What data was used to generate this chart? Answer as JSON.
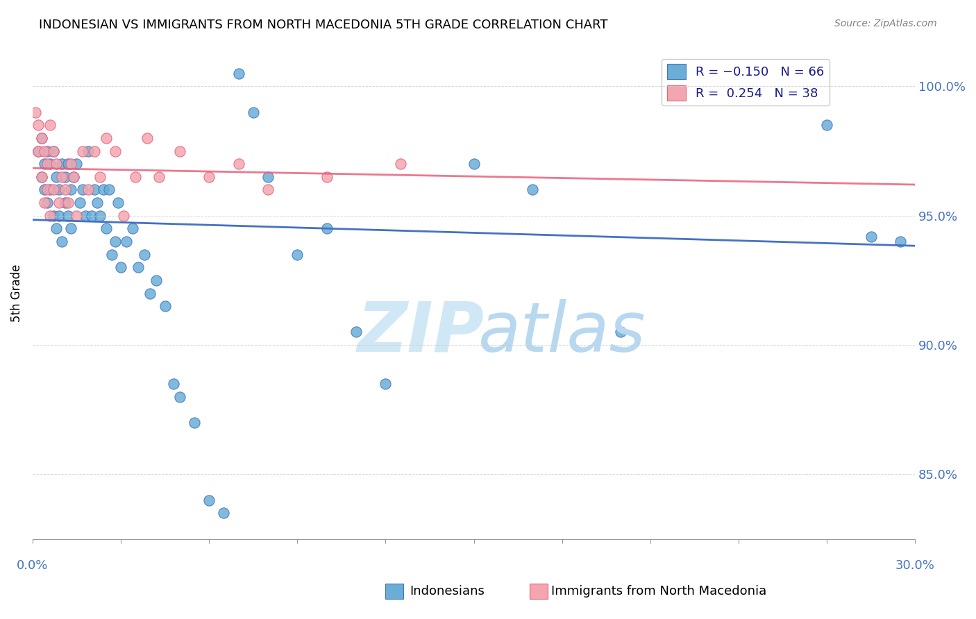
{
  "title": "INDONESIAN VS IMMIGRANTS FROM NORTH MACEDONIA 5TH GRADE CORRELATION CHART",
  "source": "Source: ZipAtlas.com",
  "ylabel": "5th Grade",
  "xlim": [
    0.0,
    30.0
  ],
  "ylim": [
    82.5,
    101.5
  ],
  "yticks": [
    85.0,
    90.0,
    95.0,
    100.0
  ],
  "ytick_labels": [
    "85.0%",
    "90.0%",
    "95.0%",
    "100.0%"
  ],
  "color_indonesian": "#6aaed6",
  "color_macedonian": "#f4a6b0",
  "color_line_indonesian": "#4472c4",
  "color_line_macedonian": "#e8607a",
  "watermark_color": "#d0e8f5",
  "indonesian_x": [
    0.2,
    0.3,
    0.3,
    0.4,
    0.4,
    0.5,
    0.5,
    0.6,
    0.6,
    0.7,
    0.7,
    0.8,
    0.8,
    0.9,
    0.9,
    1.0,
    1.0,
    1.1,
    1.1,
    1.2,
    1.2,
    1.3,
    1.3,
    1.4,
    1.5,
    1.6,
    1.7,
    1.8,
    1.9,
    2.0,
    2.1,
    2.2,
    2.3,
    2.4,
    2.5,
    2.6,
    2.7,
    2.8,
    2.9,
    3.0,
    3.2,
    3.4,
    3.6,
    3.8,
    4.0,
    4.2,
    4.5,
    4.8,
    5.0,
    5.5,
    6.0,
    6.5,
    7.0,
    7.5,
    8.0,
    9.0,
    10.0,
    11.0,
    12.0,
    15.0,
    17.0,
    20.0,
    24.0,
    27.0,
    28.5,
    29.5
  ],
  "indonesian_y": [
    97.5,
    98.0,
    96.5,
    97.0,
    96.0,
    97.5,
    95.5,
    97.0,
    96.0,
    97.5,
    95.0,
    96.5,
    94.5,
    96.0,
    95.0,
    97.0,
    94.0,
    96.5,
    95.5,
    97.0,
    95.0,
    96.0,
    94.5,
    96.5,
    97.0,
    95.5,
    96.0,
    95.0,
    97.5,
    95.0,
    96.0,
    95.5,
    95.0,
    96.0,
    94.5,
    96.0,
    93.5,
    94.0,
    95.5,
    93.0,
    94.0,
    94.5,
    93.0,
    93.5,
    92.0,
    92.5,
    91.5,
    88.5,
    88.0,
    87.0,
    84.0,
    83.5,
    100.5,
    99.0,
    96.5,
    93.5,
    94.5,
    90.5,
    88.5,
    97.0,
    96.0,
    90.5,
    100.5,
    98.5,
    94.2,
    94.0
  ],
  "macedonian_x": [
    0.1,
    0.2,
    0.2,
    0.3,
    0.3,
    0.4,
    0.4,
    0.5,
    0.5,
    0.6,
    0.6,
    0.7,
    0.7,
    0.8,
    0.9,
    1.0,
    1.1,
    1.2,
    1.3,
    1.4,
    1.5,
    1.7,
    1.9,
    2.1,
    2.3,
    2.5,
    2.8,
    3.1,
    3.5,
    3.9,
    4.3,
    5.0,
    6.0,
    7.0,
    8.0,
    10.0,
    12.5
  ],
  "macedonian_y": [
    99.0,
    98.5,
    97.5,
    98.0,
    96.5,
    97.5,
    95.5,
    97.0,
    96.0,
    98.5,
    95.0,
    97.5,
    96.0,
    97.0,
    95.5,
    96.5,
    96.0,
    95.5,
    97.0,
    96.5,
    95.0,
    97.5,
    96.0,
    97.5,
    96.5,
    98.0,
    97.5,
    95.0,
    96.5,
    98.0,
    96.5,
    97.5,
    96.5,
    97.0,
    96.0,
    96.5,
    97.0
  ]
}
